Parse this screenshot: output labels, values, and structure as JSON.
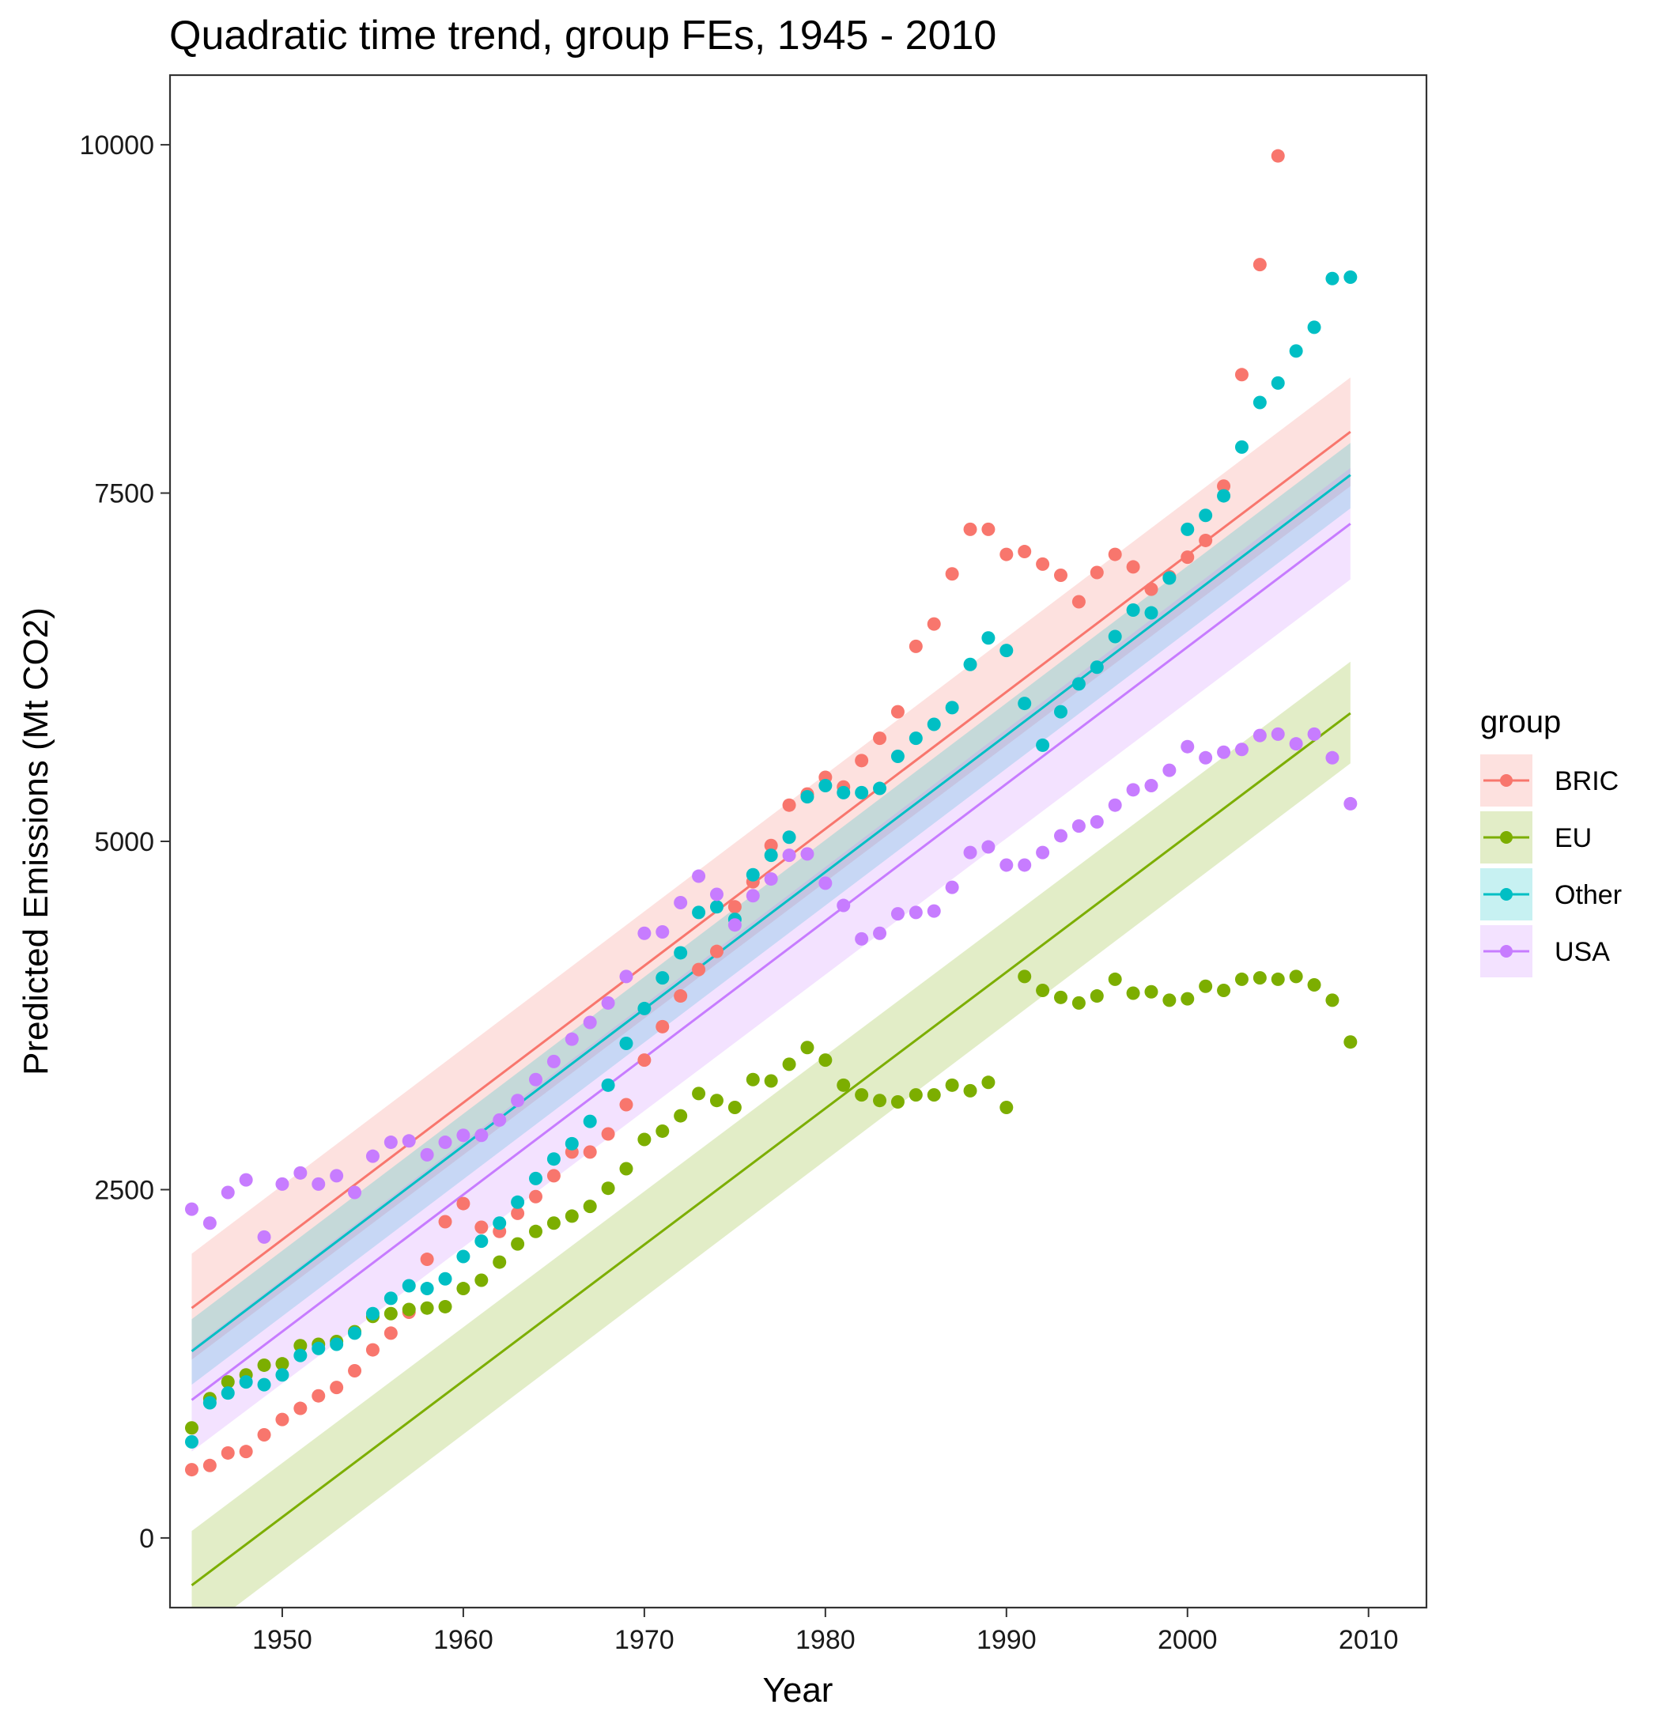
{
  "chart_data": {
    "type": "scatter",
    "title": "Quadratic time trend, group FEs, 1945 - 2010",
    "xlabel": "Year",
    "ylabel": "Predicted Emissions (Mt CO2)",
    "xlim": [
      1943.8,
      2013.2
    ],
    "ylim": [
      -500,
      10500
    ],
    "x_ticks": [
      1950,
      1960,
      1970,
      1980,
      1990,
      2000,
      2010
    ],
    "y_ticks": [
      0,
      2500,
      5000,
      7500,
      10000
    ],
    "x_tick_labels": [
      "1950",
      "1960",
      "1970",
      "1980",
      "1990",
      "2000",
      "2010"
    ],
    "y_tick_labels": [
      "0",
      "2500",
      "5000",
      "7500",
      "10000"
    ],
    "grid": false,
    "legend_title": "group",
    "legend_position": "right",
    "series": [
      {
        "name": "BRIC",
        "color": "#F8766D",
        "x": [
          1945,
          1946,
          1947,
          1948,
          1949,
          1950,
          1951,
          1952,
          1953,
          1954,
          1955,
          1956,
          1957,
          1958,
          1959,
          1960,
          1961,
          1962,
          1963,
          1964,
          1965,
          1966,
          1967,
          1968,
          1969,
          1970,
          1971,
          1972,
          1973,
          1974,
          1975,
          1976,
          1977,
          1978,
          1979,
          1980,
          1981,
          1982,
          1983,
          1984,
          1985,
          1986,
          1987,
          1988,
          1989,
          1990,
          1991,
          1992,
          1993,
          1994,
          1995,
          1996,
          1997,
          1998,
          1999,
          2000,
          2001,
          2002,
          2003,
          2004,
          2005
        ],
        "y": [
          490,
          520,
          610,
          620,
          740,
          850,
          930,
          1020,
          1080,
          1200,
          1350,
          1470,
          1620,
          2000,
          2270,
          2400,
          2230,
          2200,
          2330,
          2450,
          2600,
          2770,
          2770,
          2900,
          3110,
          3430,
          3670,
          3890,
          4080,
          4210,
          4530,
          4710,
          4970,
          5260,
          5340,
          5460,
          5390,
          5580,
          5740,
          5930,
          6400,
          6560,
          6920,
          7240,
          7240,
          7060,
          7080,
          6990,
          6910,
          6720,
          6930,
          7060,
          6970,
          6810,
          6900,
          7040,
          7160,
          7550,
          8350,
          9140,
          9920
        ],
        "fit": {
          "start_year": 1945,
          "end_year": 2009,
          "start_value": 1650,
          "end_value": 7940,
          "lower_start": 1280,
          "lower_end": 7550,
          "upper_start": 2040,
          "upper_end": 8330
        }
      },
      {
        "name": "EU",
        "color": "#7CAE00",
        "x": [
          1945,
          1946,
          1947,
          1948,
          1949,
          1950,
          1951,
          1952,
          1953,
          1954,
          1955,
          1956,
          1957,
          1958,
          1959,
          1960,
          1961,
          1962,
          1963,
          1964,
          1965,
          1966,
          1967,
          1968,
          1969,
          1970,
          1971,
          1972,
          1973,
          1974,
          1975,
          1976,
          1977,
          1978,
          1979,
          1980,
          1981,
          1982,
          1983,
          1984,
          1985,
          1986,
          1987,
          1988,
          1989,
          1990,
          1991,
          1992,
          1993,
          1994,
          1995,
          1996,
          1997,
          1998,
          1999,
          2000,
          2001,
          2002,
          2003,
          2004,
          2005,
          2006,
          2007,
          2008,
          2009
        ],
        "y": [
          790,
          1000,
          1120,
          1170,
          1240,
          1250,
          1380,
          1390,
          1410,
          1480,
          1590,
          1610,
          1640,
          1650,
          1660,
          1790,
          1850,
          1980,
          2110,
          2200,
          2260,
          2310,
          2380,
          2510,
          2650,
          2860,
          2920,
          3030,
          3190,
          3140,
          3090,
          3290,
          3280,
          3400,
          3520,
          3430,
          3250,
          3180,
          3140,
          3130,
          3180,
          3180,
          3250,
          3210,
          3270,
          3090,
          4030,
          3930,
          3880,
          3840,
          3890,
          4010,
          3910,
          3920,
          3860,
          3870,
          3960,
          3930,
          4010,
          4020,
          4010,
          4030,
          3970,
          3860,
          3560
        ],
        "fit": {
          "start_year": 1945,
          "end_year": 2009,
          "start_value": -340,
          "end_value": 5920,
          "lower_start": -730,
          "lower_end": 5560,
          "upper_start": 50,
          "upper_end": 6290
        }
      },
      {
        "name": "Other",
        "color": "#00BFC4",
        "x": [
          1945,
          1946,
          1947,
          1948,
          1949,
          1950,
          1951,
          1952,
          1953,
          1954,
          1955,
          1956,
          1957,
          1958,
          1959,
          1960,
          1961,
          1962,
          1963,
          1964,
          1965,
          1966,
          1967,
          1968,
          1969,
          1970,
          1971,
          1972,
          1973,
          1974,
          1975,
          1976,
          1977,
          1978,
          1979,
          1980,
          1981,
          1982,
          1983,
          1984,
          1985,
          1986,
          1987,
          1988,
          1989,
          1990,
          1991,
          1992,
          1993,
          1994,
          1995,
          1996,
          1997,
          1998,
          1999,
          2000,
          2001,
          2002,
          2003,
          2004,
          2005,
          2006,
          2007,
          2008,
          2009
        ],
        "y": [
          690,
          970,
          1040,
          1120,
          1100,
          1170,
          1310,
          1360,
          1390,
          1470,
          1610,
          1720,
          1810,
          1790,
          1860,
          2020,
          2130,
          2260,
          2410,
          2580,
          2720,
          2830,
          2990,
          3250,
          3550,
          3800,
          4020,
          4200,
          4490,
          4530,
          4440,
          4760,
          4900,
          5030,
          5320,
          5400,
          5350,
          5350,
          5380,
          5610,
          5740,
          5840,
          5960,
          6270,
          6460,
          6370,
          5990,
          5690,
          5930,
          6130,
          6250,
          6470,
          6660,
          6640,
          6890,
          7240,
          7340,
          7480,
          7830,
          8150,
          8290,
          8520,
          8690,
          9040,
          9050
        ],
        "fit": {
          "start_year": 1945,
          "end_year": 2009,
          "start_value": 1340,
          "end_value": 7630,
          "lower_start": 1100,
          "lower_end": 7390,
          "upper_start": 1570,
          "upper_end": 7860
        }
      },
      {
        "name": "USA",
        "color": "#C77CFF",
        "x": [
          1945,
          1946,
          1947,
          1948,
          1949,
          1950,
          1951,
          1952,
          1953,
          1954,
          1955,
          1956,
          1957,
          1958,
          1959,
          1960,
          1961,
          1962,
          1963,
          1964,
          1965,
          1966,
          1967,
          1968,
          1969,
          1970,
          1971,
          1972,
          1973,
          1974,
          1975,
          1976,
          1977,
          1978,
          1979,
          1980,
          1981,
          1982,
          1983,
          1984,
          1985,
          1986,
          1987,
          1988,
          1989,
          1990,
          1991,
          1992,
          1993,
          1994,
          1995,
          1996,
          1997,
          1998,
          1999,
          2000,
          2001,
          2002,
          2003,
          2004,
          2005,
          2006,
          2007,
          2008,
          2009
        ],
        "y": [
          2360,
          2260,
          2480,
          2570,
          2160,
          2540,
          2620,
          2540,
          2600,
          2480,
          2740,
          2840,
          2850,
          2750,
          2840,
          2890,
          2890,
          3000,
          3140,
          3290,
          3420,
          3580,
          3700,
          3840,
          4030,
          4340,
          4350,
          4560,
          4750,
          4620,
          4400,
          4610,
          4730,
          4900,
          4910,
          4700,
          4540,
          4300,
          4340,
          4480,
          4490,
          4500,
          4670,
          4920,
          4960,
          4830,
          4830,
          4920,
          5040,
          5110,
          5140,
          5260,
          5370,
          5400,
          5510,
          5680,
          5600,
          5640,
          5660,
          5760,
          5770,
          5700,
          5770,
          5600,
          5270
        ],
        "fit": {
          "start_year": 1945,
          "end_year": 2009,
          "start_value": 990,
          "end_value": 7280,
          "lower_start": 620,
          "lower_end": 6880,
          "upper_start": 1360,
          "upper_end": 7680
        }
      }
    ]
  }
}
